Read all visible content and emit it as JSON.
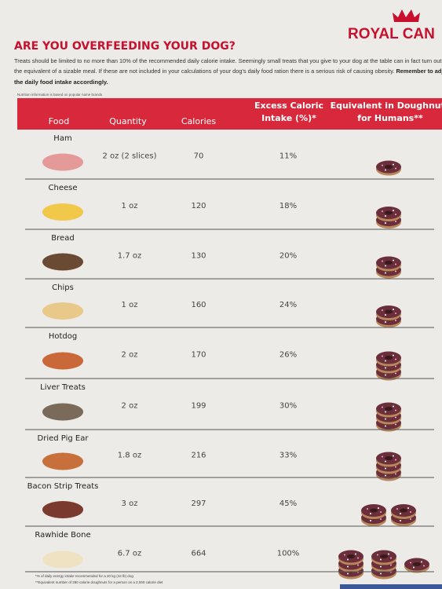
{
  "header": {
    "title": "ARE YOU OVERFEEDING YOUR DOG?",
    "brand": "ROYAL CAN"
  },
  "intro": {
    "lines": [
      "Treats should be limited to no more than 10% of the recommended daily calorie intake. Seemingly small treats that you give to your dog at the table can in fact turn out to",
      "the equivalent of a sizable meal. If these are not included in your calculations of your dog's daily food ration there is a serious risk of causing obesity.",
      "the daily food intake accordingly."
    ],
    "emphasis": "Remember to adj",
    "note": "Nutrition information is based on popular name brands"
  },
  "table": {
    "columns": [
      "Food",
      "Quantity",
      "Calories",
      "Excess Caloric Intake (%)*",
      "Equivalent in Doughnuts for Humans**"
    ],
    "rows": [
      [
        "Ham",
        "2 oz (2 slices)",
        "70",
        "11%"
      ],
      [
        "Cheese",
        "1 oz",
        "120",
        "18%"
      ],
      [
        "Bread",
        "1.7 oz",
        "130",
        "20%"
      ],
      [
        "Chips",
        "1 oz",
        "160",
        "24%"
      ],
      [
        "Hotdog",
        "2 oz",
        "170",
        "26%"
      ],
      [
        "Liver Treats",
        "2 oz",
        "199",
        "30%"
      ],
      [
        "Dried Pig Ear",
        "1.8 oz",
        "216",
        "33%"
      ],
      [
        "Bacon Strip Treats",
        "3 oz",
        "297",
        "45%"
      ],
      [
        "Rawhide Bone",
        "6.7 oz",
        "664",
        "100%"
      ]
    ]
  },
  "footnotes": [
    "*% of daily energy intake recommended for a 20 kg (44 lb) dog",
    "**Equivalent number of 280 calorie doughnuts for a person on a 2,000 calorie diet"
  ]
}
